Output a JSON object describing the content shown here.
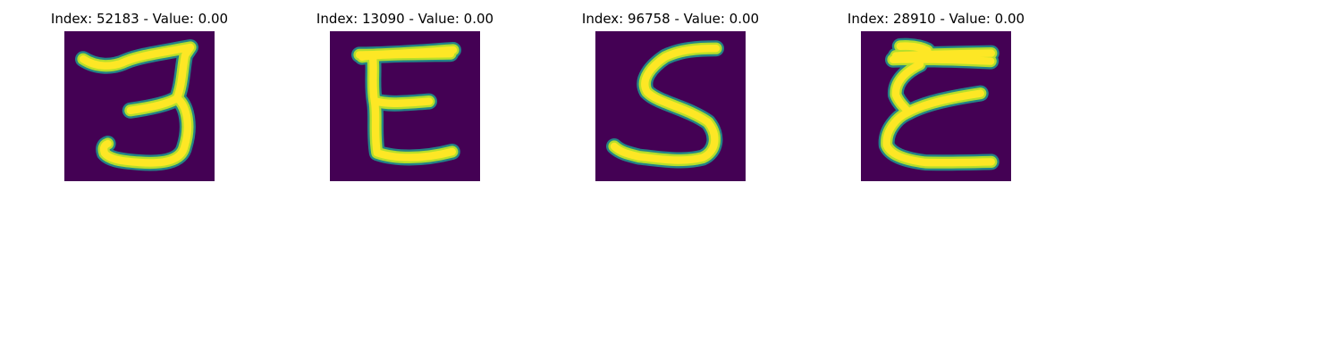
{
  "colors": {
    "background": "#440154",
    "stroke_core": "#fde725",
    "stroke_mid": "#b5de2b",
    "stroke_edge": "#21918c"
  },
  "panels": [
    {
      "title": "Index: 52183 - Value: 0.00",
      "glyph": "3"
    },
    {
      "title": "Index: 13090 - Value: 0.00",
      "glyph": "E"
    },
    {
      "title": "Index: 96758 - Value: 0.00",
      "glyph": "S"
    },
    {
      "title": "Index: 28910 - Value: 0.00",
      "glyph": "E"
    }
  ]
}
